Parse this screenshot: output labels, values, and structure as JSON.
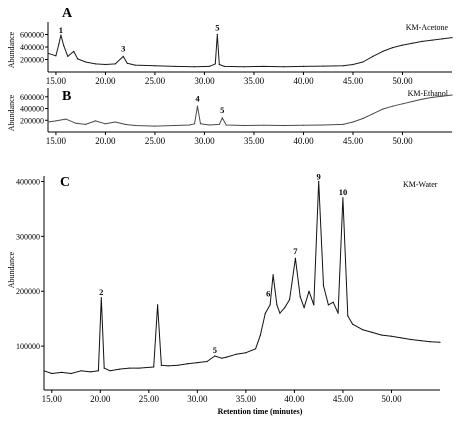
{
  "chart_data": [
    {
      "panel": "A",
      "type": "line",
      "series_name": "KM-Acetone",
      "ylabel": "Abundance",
      "yticks": [
        "200000",
        "400000",
        "600000"
      ],
      "xticks": [
        "15.00",
        "20.00",
        "25.00",
        "30.00",
        "35.00",
        "40.00",
        "45.00",
        "50.00"
      ],
      "xlim": [
        14.2,
        55.0
      ],
      "ylim": [
        0,
        800000
      ],
      "peak_labels": [
        {
          "label": "1",
          "x": 15.5,
          "y": 580000
        },
        {
          "label": "3",
          "x": 21.8,
          "y": 280000
        },
        {
          "label": "5",
          "x": 31.3,
          "y": 620000
        }
      ],
      "x": [
        14.2,
        15.0,
        15.3,
        15.5,
        15.8,
        16.2,
        16.8,
        17.2,
        18.0,
        19.0,
        20.0,
        21.0,
        21.8,
        22.2,
        23.0,
        25.0,
        27.0,
        29.0,
        30.5,
        31.1,
        31.3,
        31.5,
        32.0,
        34.0,
        36.0,
        38.0,
        40.0,
        42.0,
        44.0,
        45.0,
        46.0,
        47.0,
        48.0,
        49.0,
        50.0,
        51.0,
        52.0,
        53.0,
        54.0,
        55.0
      ],
      "y": [
        300000,
        260000,
        450000,
        590000,
        420000,
        250000,
        330000,
        210000,
        160000,
        130000,
        120000,
        130000,
        250000,
        140000,
        110000,
        100000,
        90000,
        85000,
        90000,
        130000,
        600000,
        120000,
        90000,
        85000,
        90000,
        85000,
        90000,
        95000,
        100000,
        120000,
        160000,
        250000,
        330000,
        390000,
        430000,
        460000,
        490000,
        510000,
        530000,
        550000
      ]
    },
    {
      "panel": "B",
      "type": "line",
      "series_name": "KM-Ethanol",
      "ylabel": "Abundance",
      "yticks": [
        "200000",
        "400000",
        "600000"
      ],
      "xticks": [
        "15.00",
        "20.00",
        "25.00",
        "30.00",
        "35.00",
        "40.00",
        "45.00",
        "50.00"
      ],
      "xlim": [
        14.2,
        55.0
      ],
      "ylim": [
        0,
        750000
      ],
      "peak_labels": [
        {
          "label": "4",
          "x": 29.3,
          "y": 470000
        },
        {
          "label": "5",
          "x": 31.8,
          "y": 270000
        }
      ],
      "x": [
        14.2,
        15.0,
        16.0,
        17.0,
        18.0,
        19.0,
        20.0,
        21.0,
        22.0,
        23.0,
        25.0,
        27.0,
        28.5,
        29.0,
        29.3,
        29.6,
        30.5,
        31.5,
        31.8,
        32.2,
        34.0,
        36.0,
        38.0,
        40.0,
        42.0,
        44.0,
        45.0,
        46.0,
        47.0,
        48.0,
        49.0,
        50.0,
        51.0,
        52.0,
        53.0,
        54.0,
        55.0
      ],
      "y": [
        170000,
        190000,
        220000,
        150000,
        130000,
        190000,
        140000,
        170000,
        130000,
        110000,
        100000,
        110000,
        120000,
        140000,
        440000,
        140000,
        120000,
        130000,
        240000,
        120000,
        110000,
        115000,
        110000,
        115000,
        120000,
        130000,
        170000,
        230000,
        310000,
        390000,
        440000,
        480000,
        520000,
        560000,
        590000,
        610000,
        630000
      ]
    },
    {
      "panel": "C",
      "type": "line",
      "series_name": "KM-Water",
      "ylabel": "Abundance",
      "xlabel": "Retention time (minutes)",
      "yticks": [
        "100000",
        "200000",
        "300000",
        "400000"
      ],
      "xticks": [
        "15.00",
        "20.00",
        "25.00",
        "30.00",
        "35.00",
        "40.00",
        "45.00",
        "50.00"
      ],
      "xlim": [
        14.2,
        55.0
      ],
      "ylim": [
        20000,
        410000
      ],
      "peak_labels": [
        {
          "label": "2",
          "x": 20.1,
          "y": 188000
        },
        {
          "label": "5",
          "x": 31.8,
          "y": 82000
        },
        {
          "label": "6",
          "x": 37.3,
          "y": 185000
        },
        {
          "label": "7",
          "x": 40.1,
          "y": 262000
        },
        {
          "label": "9",
          "x": 42.5,
          "y": 398000
        },
        {
          "label": "10",
          "x": 45.0,
          "y": 370000
        }
      ],
      "x": [
        14.2,
        15.0,
        16.0,
        17.0,
        18.0,
        19.0,
        19.8,
        20.1,
        20.4,
        21.0,
        22.0,
        23.0,
        24.0,
        25.5,
        25.9,
        26.3,
        27.0,
        28.0,
        29.0,
        30.0,
        31.0,
        31.8,
        32.5,
        33.0,
        34.0,
        35.0,
        36.0,
        36.5,
        37.0,
        37.5,
        37.8,
        38.2,
        38.5,
        39.0,
        39.5,
        40.1,
        40.6,
        41.0,
        41.5,
        42.0,
        42.5,
        43.0,
        43.5,
        44.0,
        44.5,
        45.0,
        45.5,
        46.0,
        47.0,
        48.0,
        49.0,
        50.0,
        51.0,
        52.0,
        53.0,
        54.0,
        55.0
      ],
      "y": [
        55000,
        50000,
        52000,
        50000,
        55000,
        53000,
        55000,
        188000,
        60000,
        55000,
        58000,
        60000,
        60000,
        62000,
        175000,
        65000,
        64000,
        65000,
        68000,
        70000,
        72000,
        82000,
        78000,
        80000,
        85000,
        88000,
        95000,
        120000,
        160000,
        175000,
        230000,
        175000,
        160000,
        170000,
        185000,
        260000,
        190000,
        170000,
        200000,
        175000,
        400000,
        210000,
        175000,
        180000,
        160000,
        370000,
        155000,
        140000,
        130000,
        125000,
        120000,
        118000,
        115000,
        112000,
        110000,
        108000,
        107000
      ]
    }
  ]
}
